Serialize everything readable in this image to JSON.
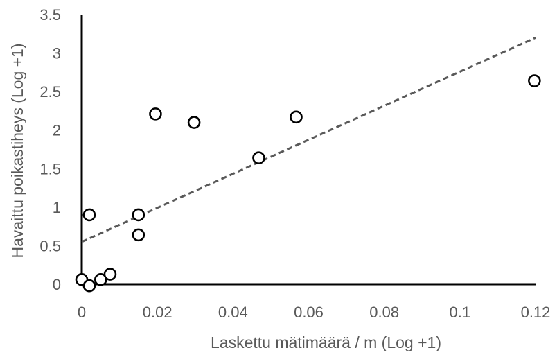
{
  "chart_data": {
    "type": "scatter",
    "title": "",
    "xlabel": "Laskettu mätimäärä / m (Log +1)",
    "ylabel": "Havaittu poikastiheys (Log +1)",
    "xlim": [
      0,
      0.12
    ],
    "ylim": [
      0,
      3.5
    ],
    "x_ticks": [
      "0",
      "0.02",
      "0.04",
      "0.06",
      "0.08",
      "0.1",
      "0.12"
    ],
    "x_tick_values": [
      0,
      0.02,
      0.04,
      0.06,
      0.08,
      0.1,
      0.12
    ],
    "y_ticks": [
      "0",
      "0.5",
      "1",
      "1.5",
      "2",
      "2.5",
      "3",
      "3.5"
    ],
    "y_tick_values": [
      0,
      0.5,
      1,
      1.5,
      2,
      2.5,
      3,
      3.5
    ],
    "grid": false,
    "legend": "none",
    "marker": "open-circle",
    "marker_color": "#000000",
    "trendline": {
      "style": "dashed",
      "color": "#595959",
      "from": {
        "x": 0,
        "y": 0.55
      },
      "to": {
        "x": 0.12,
        "y": 3.2
      }
    },
    "points": [
      {
        "x": 0.0,
        "y": 0.06
      },
      {
        "x": 0.002,
        "y": -0.02
      },
      {
        "x": 0.002,
        "y": 0.9
      },
      {
        "x": 0.005,
        "y": 0.06
      },
      {
        "x": 0.0075,
        "y": 0.13
      },
      {
        "x": 0.015,
        "y": 0.64
      },
      {
        "x": 0.015,
        "y": 0.9
      },
      {
        "x": 0.0195,
        "y": 2.21
      },
      {
        "x": 0.0297,
        "y": 2.1
      },
      {
        "x": 0.0468,
        "y": 1.64
      },
      {
        "x": 0.0567,
        "y": 2.17
      },
      {
        "x": 0.1197,
        "y": 2.64
      }
    ]
  }
}
